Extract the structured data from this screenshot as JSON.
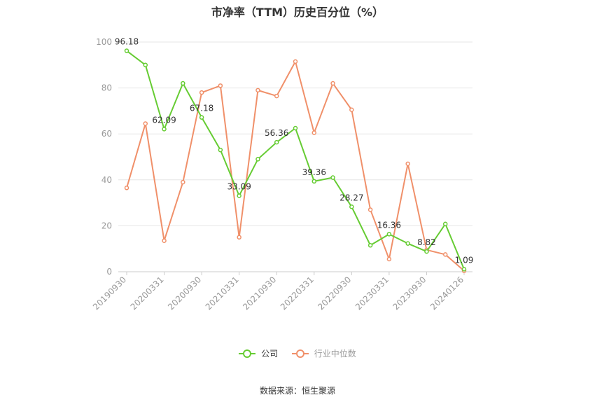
{
  "title": "市净率（TTM）历史百分位（%）",
  "source": "数据来源：恒生聚源",
  "colors": {
    "company": "#66cc33",
    "industry": "#f0906a"
  },
  "chart_data": {
    "type": "line",
    "title": "市净率（TTM）历史百分位（%）",
    "ylim": [
      0,
      100
    ],
    "yticks": [
      0,
      20,
      40,
      60,
      80,
      100
    ],
    "grid": true,
    "legend_position": "bottom",
    "x": [
      "20190930",
      "20191231",
      "20200331",
      "20200630",
      "20200930",
      "20201231",
      "20210331",
      "20210630",
      "20210930",
      "20211231",
      "20220331",
      "20220630",
      "20220930",
      "20221231",
      "20230331",
      "20230630",
      "20230930",
      "20231231",
      "20240126"
    ],
    "x_tick_labels": [
      "20190930",
      "20200331",
      "20200930",
      "20210331",
      "20210930",
      "20220331",
      "20220930",
      "20230331",
      "20230930",
      "20240126"
    ],
    "series": [
      {
        "name": "公司",
        "color": "#66cc33",
        "values": [
          96.18,
          90,
          62.09,
          82,
          67.18,
          53,
          33.09,
          49,
          56.36,
          62.5,
          39.36,
          41,
          28.27,
          11.5,
          16.36,
          12.3,
          8.82,
          20.8,
          1.09
        ],
        "data_labels": [
          "96.18",
          null,
          "62.09",
          null,
          "67.18",
          null,
          "33.09",
          null,
          "56.36",
          null,
          "39.36",
          null,
          "28.27",
          null,
          "16.36",
          null,
          "8.82",
          null,
          "1.09"
        ]
      },
      {
        "name": "行业中位数",
        "color": "#f0906a",
        "values": [
          36.5,
          64.5,
          13.5,
          39,
          78,
          81,
          15,
          79,
          76.5,
          91.5,
          60.5,
          82,
          70.5,
          27,
          5.5,
          47,
          9.5,
          7.5,
          0.4
        ]
      }
    ]
  }
}
